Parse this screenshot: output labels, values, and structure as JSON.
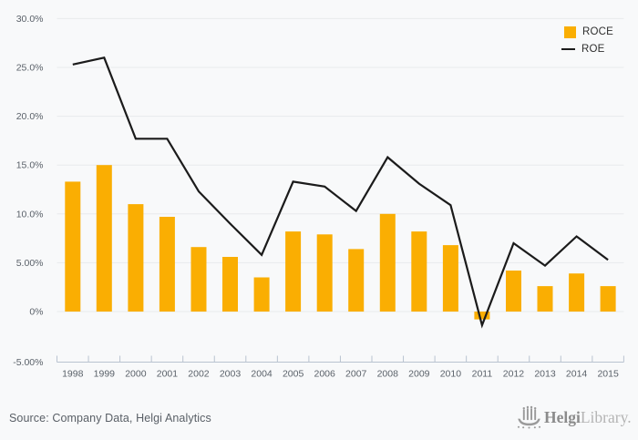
{
  "colors": {
    "background": "#f8f9fa",
    "gridline": "#e8eaec",
    "axis": "#b9c3d0",
    "axis_text": "#5a6169",
    "bar": "#faae02",
    "line": "#1b1b1b"
  },
  "chart_data": {
    "type": "bar+line",
    "title": "",
    "categories": [
      "1998",
      "1999",
      "2000",
      "2001",
      "2002",
      "2003",
      "2004",
      "2005",
      "2006",
      "2007",
      "2008",
      "2009",
      "2010",
      "2011",
      "2012",
      "2013",
      "2014",
      "2015"
    ],
    "series": [
      {
        "name": "ROCE",
        "type": "bar",
        "color": "#faae02",
        "values": [
          13.3,
          15.0,
          11.0,
          9.7,
          6.6,
          5.6,
          3.5,
          8.2,
          7.9,
          6.4,
          10.0,
          8.2,
          6.8,
          -0.8,
          4.2,
          2.6,
          3.9,
          2.6
        ]
      },
      {
        "name": "ROE",
        "type": "line",
        "color": "#1b1b1b",
        "values": [
          25.3,
          26.0,
          17.7,
          17.7,
          12.3,
          9.0,
          5.8,
          13.3,
          12.8,
          10.3,
          15.8,
          13.1,
          10.9,
          -1.4,
          7.0,
          4.7,
          7.7,
          5.3
        ]
      }
    ],
    "y_axis": {
      "ticks": [
        {
          "label": "30.0%",
          "value": 30
        },
        {
          "label": "25.0%",
          "value": 25
        },
        {
          "label": "20.0%",
          "value": 20
        },
        {
          "label": "15.0%",
          "value": 15
        },
        {
          "label": "10.0%",
          "value": 10
        },
        {
          "label": "5.00%",
          "value": 5
        },
        {
          "label": "0%",
          "value": 0
        },
        {
          "label": "-5.00%",
          "value": -5
        }
      ]
    },
    "ylim": [
      -5,
      30
    ],
    "grid": true,
    "legend_position": "top-right"
  },
  "footer": {
    "source_text": "Source: Company Data, Helgi Analytics",
    "logo": {
      "icon": "viking-ship-icon",
      "brand_bold": "Helgi",
      "brand_light": "Library."
    }
  }
}
